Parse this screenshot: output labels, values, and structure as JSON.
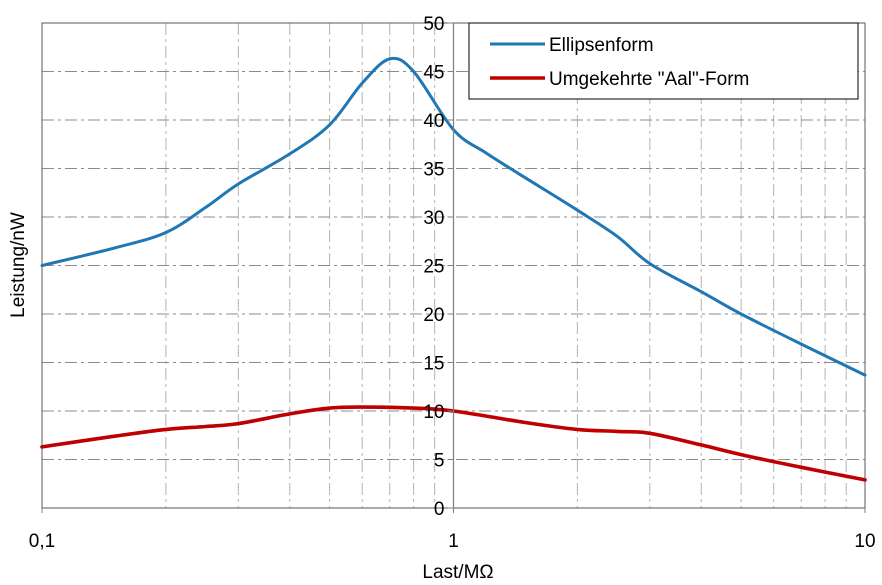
{
  "chart_data": {
    "type": "line",
    "xscale": "log",
    "xlim": [
      0.1,
      10
    ],
    "ylim": [
      0,
      50
    ],
    "xlabel": "Last/MΩ",
    "ylabel": "Leistung/nW",
    "title": "",
    "x_tick_labels": [
      {
        "value": 0.1,
        "label": "0,1"
      },
      {
        "value": 1,
        "label": "1"
      },
      {
        "value": 10,
        "label": "10"
      }
    ],
    "y_ticks": [
      0,
      5,
      10,
      15,
      20,
      25,
      30,
      35,
      40,
      45,
      50
    ],
    "grid": "dash-dot, major and minor",
    "legend_position": "top-right",
    "series": [
      {
        "name": "Ellipsenform",
        "color": "#1f77b4",
        "x": [
          0.1,
          0.15,
          0.2,
          0.25,
          0.3,
          0.4,
          0.5,
          0.6,
          0.7,
          0.8,
          1.0,
          1.2,
          1.5,
          2.0,
          2.5,
          3.0,
          4.0,
          5.0,
          7.0,
          10.0
        ],
        "y": [
          25.0,
          26.8,
          28.4,
          31.0,
          33.4,
          36.5,
          39.5,
          43.8,
          46.3,
          45.0,
          39.0,
          36.6,
          34.0,
          30.7,
          28.0,
          25.2,
          22.3,
          20.0,
          16.9,
          13.7
        ]
      },
      {
        "name": "Umgekehrte \"Aal\"-Form",
        "color": "#c00000",
        "x": [
          0.1,
          0.15,
          0.2,
          0.25,
          0.3,
          0.4,
          0.5,
          0.6,
          0.8,
          1.0,
          1.5,
          2.0,
          2.5,
          3.0,
          4.0,
          5.0,
          7.0,
          10.0
        ],
        "y": [
          6.3,
          7.4,
          8.1,
          8.4,
          8.7,
          9.7,
          10.3,
          10.4,
          10.3,
          10.0,
          8.8,
          8.1,
          7.9,
          7.7,
          6.5,
          5.5,
          4.2,
          2.9
        ]
      }
    ]
  }
}
